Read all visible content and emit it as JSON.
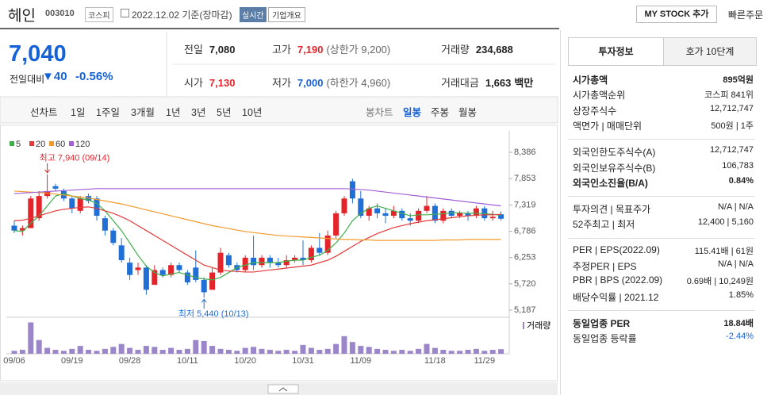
{
  "header": {
    "name": "헤인",
    "code": "003010",
    "market": "코스피",
    "date": "2022.12.02 기준(장마감)",
    "realtime": "실시간",
    "company_info": "기업개요",
    "my_stock": "MY STOCK 추가",
    "quick_order": "빠른주문"
  },
  "price": {
    "current": "7,040",
    "change_label": "전일대비",
    "change": "▼40",
    "change_pct": "-0.56%",
    "color": "#1561d6"
  },
  "quote_table": [
    [
      {
        "label": "전일",
        "value": "7,080"
      },
      {
        "label": "고가",
        "value": "7,190",
        "note": "(상한가 9,200)",
        "color": "#e3242b"
      },
      {
        "label": "거래량",
        "value": "234,688"
      }
    ],
    [
      {
        "label": "시가",
        "value": "7,130",
        "color": "#e3242b"
      },
      {
        "label": "저가",
        "value": "7,000",
        "note": "(하한가 4,960)",
        "color": "#1561d6"
      },
      {
        "label": "거래대금",
        "value": "1,663",
        "unit": "백만"
      }
    ]
  ],
  "chart_tabs": {
    "line": [
      "선차트",
      "1일",
      "1주일",
      "3개월",
      "1년",
      "3년",
      "5년",
      "10년"
    ],
    "candle": [
      "봉차트",
      "일봉",
      "주봉",
      "월봉"
    ],
    "selected": "일봉"
  },
  "chart_data": {
    "type": "candlestick",
    "categories": [
      "09/06",
      null,
      null,
      null,
      null,
      null,
      null,
      "09/19",
      null,
      null,
      null,
      null,
      null,
      null,
      "09/28",
      null,
      null,
      null,
      null,
      null,
      null,
      "10/11",
      null,
      null,
      null,
      null,
      null,
      null,
      "10/20",
      null,
      null,
      null,
      null,
      null,
      null,
      "10/31",
      null,
      null,
      null,
      null,
      null,
      null,
      "11/09",
      null,
      null,
      null,
      null,
      null,
      null,
      null,
      null,
      "11/18",
      null,
      null,
      null,
      null,
      null,
      "11/29",
      null,
      null
    ],
    "open": [
      6900,
      6800,
      6850,
      7050,
      7500,
      7700,
      7600,
      7450,
      7200,
      7500,
      7450,
      7050,
      6800,
      6500,
      6150,
      6000,
      6050,
      5700,
      6000,
      5900,
      6100,
      5950,
      6050,
      5800,
      5600,
      5950,
      6300,
      6100,
      6000,
      6250,
      6100,
      6250,
      6150,
      6100,
      6200,
      6250,
      6200,
      6450,
      6350,
      6700,
      7150,
      7800,
      7450,
      7100,
      7250,
      7150,
      7100,
      7200,
      7050,
      7000,
      7200,
      7300,
      7000,
      7200,
      7100,
      7150,
      7100,
      7250,
      7050,
      7130
    ],
    "high": [
      7000,
      6900,
      7500,
      7600,
      7940,
      7750,
      7650,
      7500,
      7500,
      7550,
      7500,
      7100,
      6850,
      6650,
      6250,
      6150,
      6100,
      6100,
      6050,
      6150,
      6150,
      6000,
      6400,
      5850,
      6050,
      6450,
      6350,
      6150,
      6300,
      6700,
      6300,
      6300,
      6250,
      6300,
      6300,
      6600,
      6500,
      6750,
      6800,
      7200,
      7500,
      7850,
      7600,
      7300,
      7350,
      7250,
      7300,
      7250,
      7150,
      7250,
      7500,
      7350,
      7250,
      7250,
      7200,
      7200,
      7300,
      7300,
      7200,
      7190
    ],
    "low": [
      6750,
      6700,
      6850,
      7000,
      7450,
      7600,
      7400,
      7150,
      7150,
      7350,
      7000,
      6700,
      6500,
      6150,
      5800,
      5900,
      5500,
      5700,
      5850,
      5850,
      5950,
      5700,
      5750,
      5440,
      5600,
      5900,
      6050,
      5950,
      5950,
      6000,
      6050,
      6050,
      6050,
      6050,
      6150,
      6100,
      6150,
      6300,
      6300,
      6650,
      7100,
      7350,
      7050,
      7000,
      7050,
      6950,
      7050,
      7000,
      6900,
      6950,
      7150,
      6950,
      6950,
      7050,
      7050,
      7000,
      7050,
      7000,
      7000,
      7000
    ],
    "close": [
      6800,
      6850,
      7450,
      7500,
      7600,
      7650,
      7450,
      7250,
      7450,
      7400,
      7100,
      6800,
      6550,
      6200,
      5900,
      6050,
      5600,
      6000,
      5900,
      6100,
      6000,
      5750,
      5800,
      5550,
      5950,
      6350,
      6100,
      6000,
      6250,
      6100,
      6250,
      6150,
      6100,
      6200,
      6250,
      6200,
      6450,
      6350,
      6700,
      7150,
      7450,
      7450,
      7100,
      7250,
      7150,
      7100,
      7200,
      7050,
      7000,
      7200,
      7300,
      7000,
      7200,
      7100,
      7150,
      7100,
      7250,
      7050,
      7080,
      7040
    ],
    "up_color": "#e3242b",
    "down_color": "#1f6fd6",
    "ma": [
      {
        "name": "5",
        "color": "#3fae49",
        "values": [
          6800,
          6780,
          6950,
          7100,
          7300,
          7500,
          7550,
          7500,
          7450,
          7420,
          7350,
          7200,
          7000,
          6800,
          6550,
          6300,
          6080,
          5950,
          5880,
          5920,
          5950,
          5900,
          5850,
          5820,
          5800,
          5850,
          5950,
          6050,
          6100,
          6150,
          6150,
          6150,
          6150,
          6180,
          6200,
          6200,
          6260,
          6300,
          6400,
          6550,
          6750,
          7000,
          7150,
          7250,
          7300,
          7250,
          7200,
          7150,
          7100,
          7120,
          7120,
          7130,
          7140,
          7160,
          7160,
          7150,
          7150,
          7140,
          7130,
          7110
        ]
      },
      {
        "name": "20",
        "color": "#e23a3a",
        "values": [
          7000,
          7010,
          7050,
          7100,
          7150,
          7200,
          7230,
          7250,
          7270,
          7280,
          7250,
          7200,
          7150,
          7080,
          7000,
          6900,
          6800,
          6700,
          6600,
          6500,
          6400,
          6300,
          6200,
          6100,
          6050,
          6000,
          5980,
          5970,
          5960,
          5960,
          5980,
          6000,
          6020,
          6040,
          6060,
          6080,
          6100,
          6150,
          6200,
          6280,
          6380,
          6480,
          6580,
          6660,
          6740,
          6800,
          6860,
          6900,
          6940,
          6970,
          7000,
          7020,
          7040,
          7060,
          7080,
          7100,
          7110,
          7120,
          7120,
          7130
        ]
      },
      {
        "name": "60",
        "color": "#f39a2b",
        "values": [
          7600,
          7590,
          7580,
          7570,
          7560,
          7540,
          7520,
          7500,
          7480,
          7460,
          7430,
          7400,
          7370,
          7340,
          7300,
          7260,
          7220,
          7180,
          7140,
          7100,
          7060,
          7020,
          6980,
          6940,
          6900,
          6870,
          6840,
          6810,
          6780,
          6760,
          6740,
          6720,
          6700,
          6690,
          6680,
          6670,
          6660,
          6650,
          6640,
          6630,
          6620,
          6620,
          6610,
          6610,
          6600,
          6600,
          6600,
          6600,
          6600,
          6600,
          6600,
          6600,
          6610,
          6610,
          6610,
          6620,
          6620,
          6620,
          6620,
          6620
        ]
      },
      {
        "name": "120",
        "color": "#a15fd6",
        "values": [
          7550,
          7560,
          7570,
          7580,
          7590,
          7600,
          7610,
          7620,
          7630,
          7640,
          7650,
          7650,
          7650,
          7650,
          7650,
          7650,
          7650,
          7650,
          7650,
          7650,
          7650,
          7650,
          7650,
          7650,
          7650,
          7650,
          7650,
          7650,
          7650,
          7650,
          7650,
          7650,
          7650,
          7650,
          7650,
          7650,
          7650,
          7650,
          7650,
          7650,
          7650,
          7640,
          7630,
          7620,
          7600,
          7580,
          7560,
          7540,
          7520,
          7500,
          7480,
          7460,
          7440,
          7420,
          7400,
          7380,
          7360,
          7340,
          7320,
          7300
        ]
      }
    ],
    "annotations": {
      "high": "최고 7,940 (09/14)",
      "low": "최저 5,440 (10/13)"
    },
    "ylim": [
      5075,
      8660
    ],
    "yticks": [
      {
        "value": 8386,
        "label": "8,386"
      },
      {
        "value": 7853,
        "label": "7,853"
      },
      {
        "value": 7319,
        "label": "7,319"
      },
      {
        "value": 6786,
        "label": "6,786"
      },
      {
        "value": 6253,
        "label": "6,253"
      },
      {
        "value": 5720,
        "label": "5,720"
      },
      {
        "value": 5187,
        "label": "5,187"
      }
    ],
    "volume": {
      "name": "거래량",
      "color": "#9b86c9",
      "ylim": [
        0,
        1700000
      ],
      "values": [
        150000,
        200000,
        1600000,
        700000,
        300000,
        200000,
        150000,
        250000,
        400000,
        200000,
        150000,
        250000,
        350000,
        500000,
        300000,
        200000,
        400000,
        350000,
        200000,
        300000,
        200000,
        250000,
        700000,
        650000,
        400000,
        250000,
        200000,
        150000,
        300000,
        350000,
        250000,
        200000,
        150000,
        200000,
        150000,
        450000,
        300000,
        200000,
        250000,
        500000,
        900000,
        600000,
        400000,
        350000,
        250000,
        200000,
        150000,
        200000,
        150000,
        250000,
        500000,
        300000,
        200000,
        150000,
        150000,
        200000,
        250000,
        150000,
        200000,
        234688
      ]
    }
  },
  "info_panel": {
    "tabs": [
      "투자정보",
      "호가 10단계"
    ],
    "groups": [
      [
        {
          "label": "시가총액",
          "value": "895억원",
          "bold": true
        },
        {
          "label": "시가총액순위",
          "value": "코스피 841위"
        },
        {
          "label": "상장주식수",
          "value": "12,712,747"
        },
        {
          "label": "액면가 | 매매단위",
          "value": "500원 | 1주"
        }
      ],
      [
        {
          "label": "외국인한도주식수(A)",
          "value": "12,712,747"
        },
        {
          "label": "외국인보유주식수(B)",
          "value": "106,783"
        },
        {
          "label": "외국인소진율(B/A)",
          "value": "0.84%",
          "bold": true
        }
      ],
      [
        {
          "label": "투자의견 | 목표주가",
          "value": "N/A | N/A"
        },
        {
          "label": "52주최고 | 최저",
          "value": "12,400 | 5,160"
        }
      ],
      [
        {
          "label": "PER | EPS(2022.09)",
          "value": "115.41배 | 61원"
        },
        {
          "label": "추정PER | EPS",
          "value": "N/A | N/A"
        },
        {
          "label": "PBR | BPS (2022.09)",
          "value": "0.69배 | 10,249원"
        },
        {
          "label": "배당수익률 | 2021.12",
          "value": "1.85%"
        }
      ],
      [
        {
          "label": "동일업종 PER",
          "value": "18.84배",
          "bold": true
        },
        {
          "label": "동일업종 등락률",
          "value": "-2.44%",
          "color": "#1561d6"
        }
      ]
    ]
  }
}
